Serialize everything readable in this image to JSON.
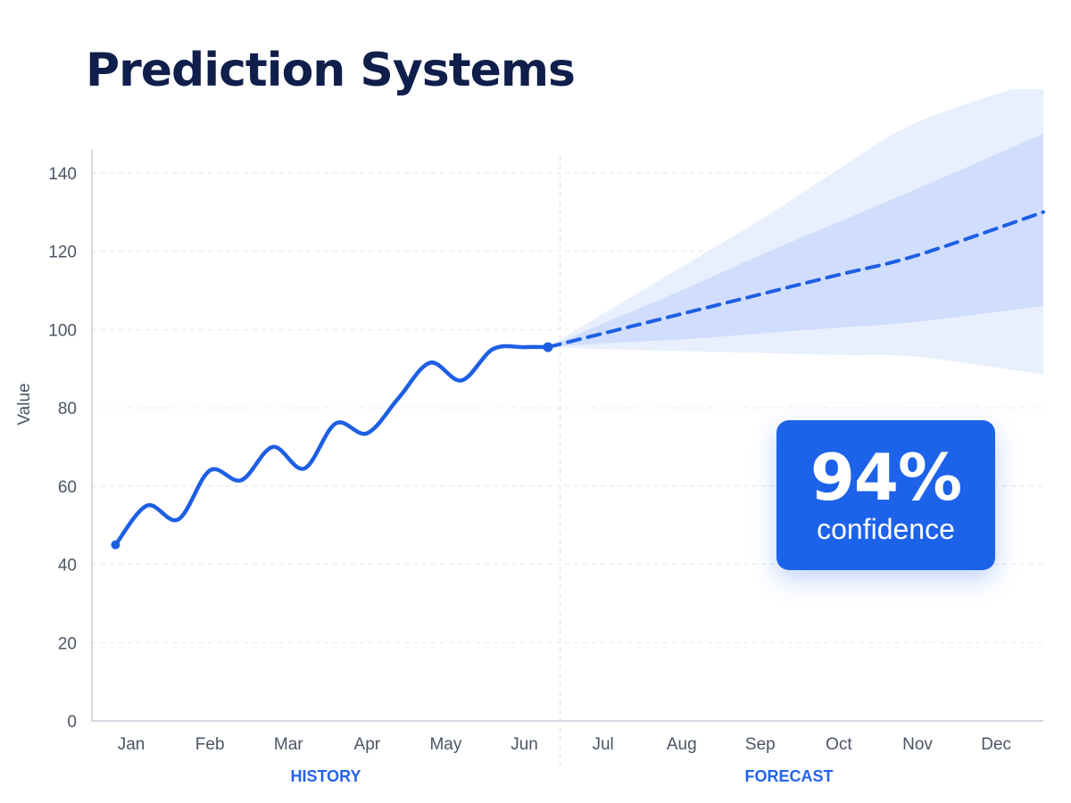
{
  "page": {
    "title": "Prediction Systems"
  },
  "badge": {
    "value": "94%",
    "label": "confidence"
  },
  "colors": {
    "line": "#1d5fe3",
    "band_inner": "#c9d8fb",
    "band_outer": "#e4ecfd",
    "badge": "#1d63ea",
    "section_label": "#2563eb",
    "title": "#0f1e4a"
  },
  "chart_data": {
    "type": "line",
    "ylabel": "Value",
    "ylim": [
      0,
      150
    ],
    "yticks": [
      0,
      20,
      40,
      60,
      80,
      100,
      120,
      140
    ],
    "xlim": [
      0.5,
      12.6
    ],
    "categories": [
      "Jan",
      "Feb",
      "Mar",
      "Apr",
      "May",
      "Jun",
      "Jul",
      "Aug",
      "Sep",
      "Oct",
      "Nov",
      "Dec"
    ],
    "grid": true,
    "sections": [
      "HISTORY",
      "FORECAST"
    ],
    "split_after": "Jun",
    "history": {
      "x": [
        0.8,
        1.2,
        1.6,
        2.0,
        2.4,
        2.8,
        3.2,
        3.6,
        4.0,
        4.4,
        4.8,
        5.2,
        5.6,
        6.0,
        6.3
      ],
      "y": [
        45,
        55,
        51.5,
        64,
        61.5,
        70,
        64.5,
        76,
        73.5,
        82.5,
        91.5,
        87,
        95,
        95.5,
        95.5
      ]
    },
    "forecast": {
      "x": [
        6.3,
        7.0,
        8.0,
        9.0,
        10.0,
        11.0,
        12.6
      ],
      "y": [
        95.5,
        99,
        104,
        109,
        114,
        119,
        130
      ],
      "inner_lower": [
        95.5,
        96.5,
        97.5,
        99,
        100.5,
        102,
        106
      ],
      "inner_upper": [
        95.5,
        101.5,
        110,
        119,
        127.5,
        136,
        150
      ],
      "outer_lower": [
        95.5,
        95,
        94.5,
        94,
        93.5,
        93,
        88.5
      ],
      "outer_upper": [
        95.5,
        104,
        116,
        128,
        141,
        153,
        164
      ]
    }
  }
}
